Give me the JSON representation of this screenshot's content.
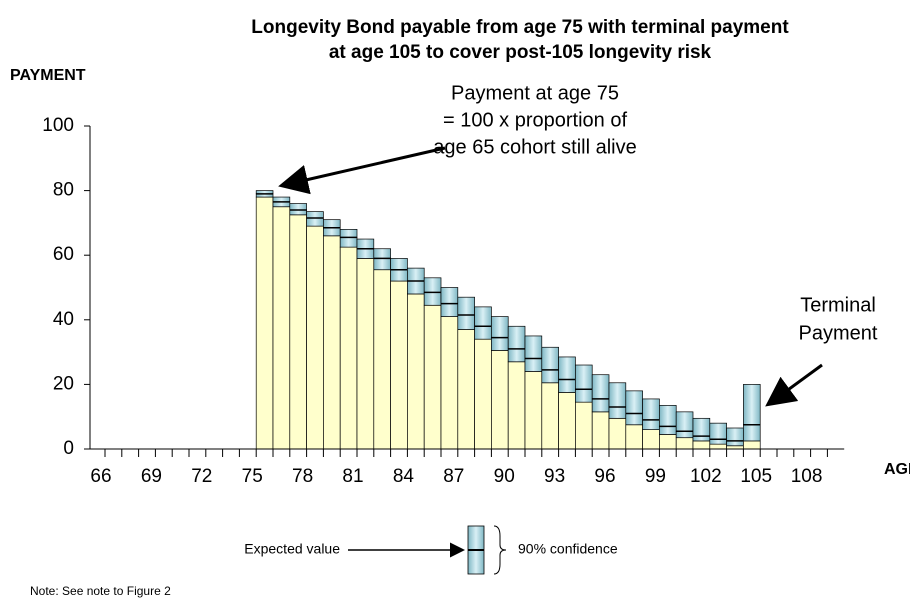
{
  "chart_data": {
    "type": "bar",
    "title": [
      "Longevity Bond payable from age 75 with terminal payment",
      "at age 105 to cover post-105 longevity risk"
    ],
    "y_label": "PAYMENT",
    "x_label": "AGE",
    "categories": [
      66,
      null,
      null,
      69,
      null,
      null,
      72,
      null,
      null,
      75,
      null,
      null,
      78,
      null,
      null,
      81,
      null,
      null,
      84,
      null,
      null,
      87,
      null,
      null,
      90,
      null,
      null,
      93,
      null,
      null,
      96,
      null,
      null,
      99,
      null,
      null,
      102,
      null,
      null,
      105,
      null,
      null,
      108,
      null
    ],
    "series": [
      {
        "name": "Expected value",
        "values": [
          null,
          null,
          null,
          null,
          null,
          null,
          null,
          null,
          null,
          79,
          76.5,
          74,
          71.5,
          68.5,
          65.5,
          62,
          59,
          55.5,
          52,
          48.5,
          45,
          41.5,
          38,
          34.5,
          31,
          28,
          24.5,
          21.5,
          18.5,
          15.5,
          13,
          11,
          9,
          7,
          5.5,
          4,
          3,
          2.5,
          7.5,
          null,
          null,
          null,
          null,
          null
        ]
      }
    ],
    "confidence": {
      "name": "90% confidence",
      "lower": [
        null,
        null,
        null,
        null,
        null,
        null,
        null,
        null,
        null,
        78,
        75,
        72.5,
        69,
        66,
        62.5,
        59,
        55.5,
        52,
        48,
        44.5,
        41,
        37,
        34,
        30.5,
        27,
        24,
        20.5,
        17.5,
        14.5,
        11.5,
        9.5,
        7.5,
        6,
        4.5,
        3.5,
        2.5,
        1.5,
        1,
        2.5,
        null,
        null,
        null,
        null,
        null
      ],
      "upper": [
        null,
        null,
        null,
        null,
        null,
        null,
        null,
        null,
        null,
        80,
        78,
        76,
        73.5,
        71,
        68,
        65,
        62,
        59,
        56,
        53,
        50,
        47,
        44,
        41,
        38,
        35,
        31.5,
        28.5,
        26,
        23,
        20.5,
        18,
        15.5,
        13.5,
        11.5,
        9.5,
        8,
        6.5,
        20,
        null,
        null,
        null,
        null,
        null
      ]
    },
    "ylim": [
      0,
      100
    ],
    "yticks": [
      0,
      20,
      40,
      60,
      80,
      100
    ],
    "annotations": [
      [
        "Payment at age 75",
        "= 100 x proportion of",
        "age 65 cohort still alive"
      ],
      [
        "Terminal",
        "Payment"
      ]
    ],
    "note": "Note: See note to Figure 2"
  }
}
